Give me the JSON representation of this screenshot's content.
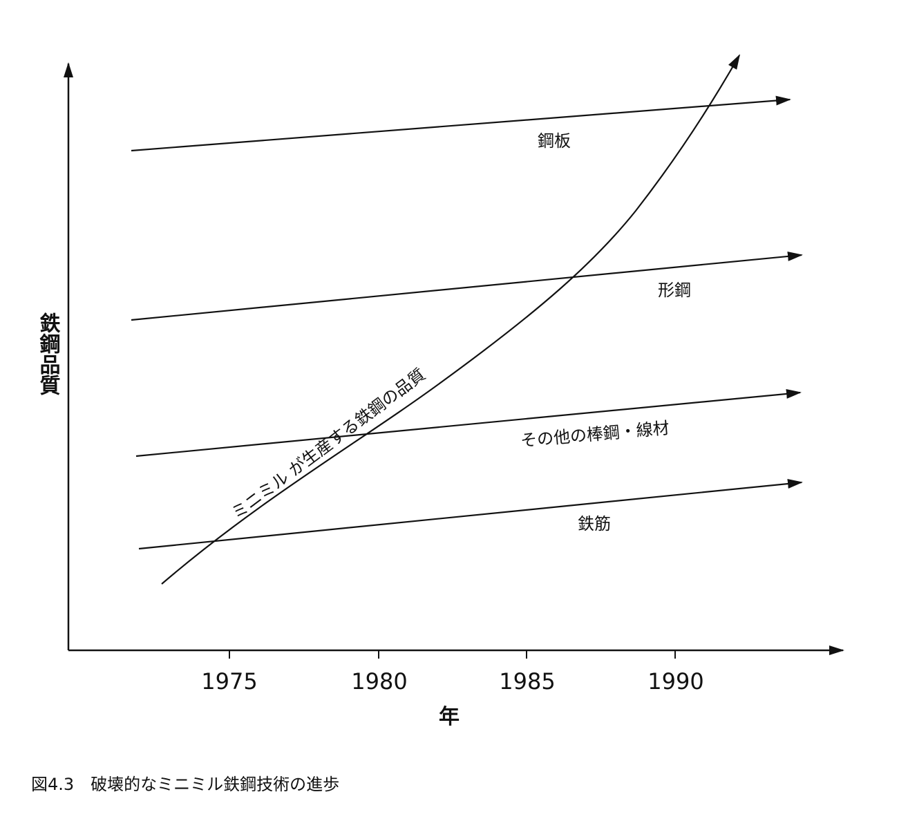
{
  "diagram": {
    "y_axis_title": "鉄鋼品質",
    "x_axis_title": "年",
    "x_ticks": [
      "1975",
      "1980",
      "1985",
      "1990"
    ],
    "product_lines": [
      {
        "label": "鋼板"
      },
      {
        "label": "形鋼"
      },
      {
        "label": "その他の棒鋼・線材"
      },
      {
        "label": "鉄筋"
      }
    ],
    "minimill_curve_label": "ミニミル が生産する鉄鋼の品質"
  },
  "caption": "図4.3　破壊的なミニミル鉄鋼技術の進歩",
  "colors": {
    "ink": "#111111",
    "background": "#ffffff"
  }
}
